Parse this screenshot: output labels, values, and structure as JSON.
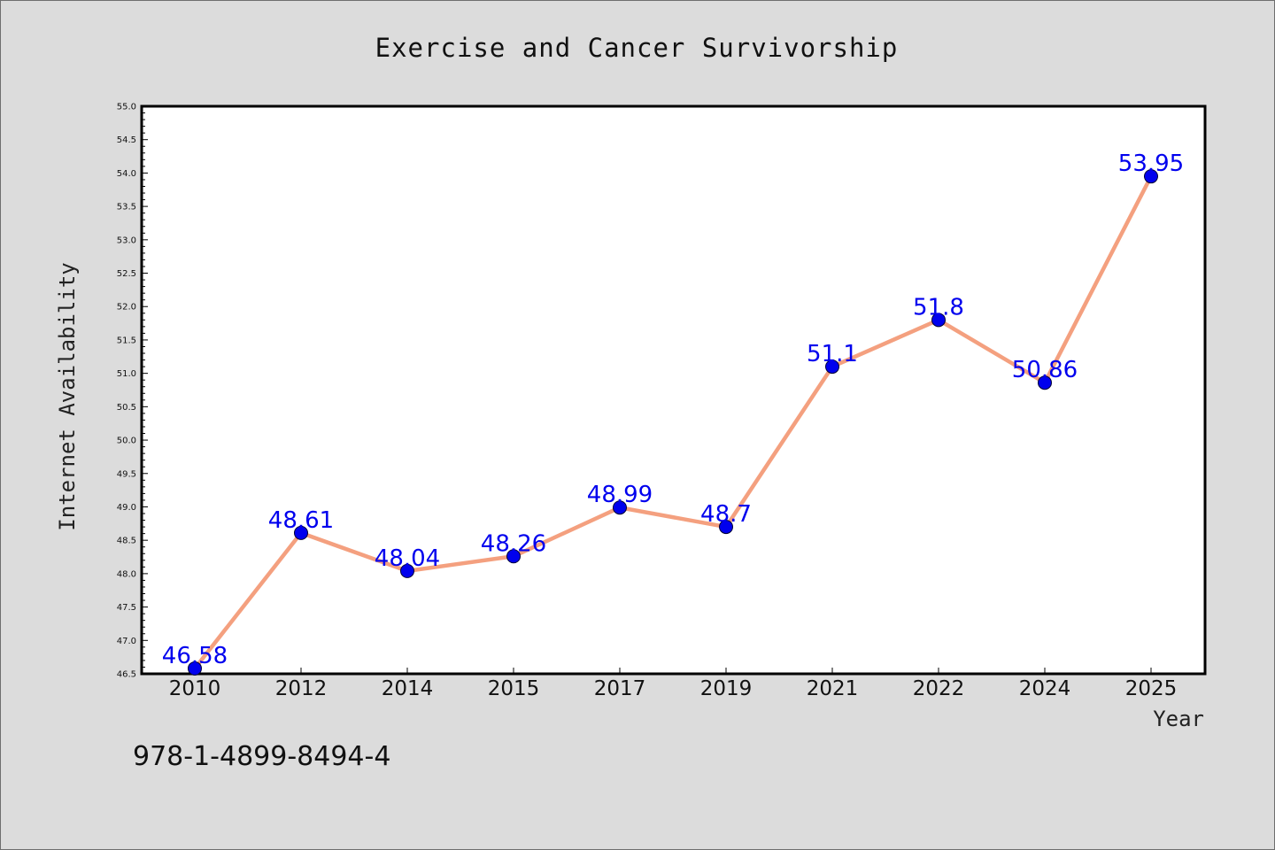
{
  "chart_data": {
    "type": "line",
    "title": "Exercise and Cancer Survivorship",
    "xlabel": "Year",
    "ylabel": "Internet Availability",
    "categories": [
      "2010",
      "2012",
      "2014",
      "2015",
      "2017",
      "2019",
      "2021",
      "2022",
      "2024",
      "2025"
    ],
    "series": [
      {
        "values": [
          46.58,
          48.61,
          48.04,
          48.26,
          48.99,
          48.7,
          51.1,
          51.8,
          50.86,
          53.95
        ],
        "line_color": "#f4a07f",
        "marker_color": "#0000ee",
        "label_color": "#0000ee"
      }
    ],
    "ylim": [
      46.5,
      55.0
    ],
    "yticks": [
      "46.5",
      "47.0",
      "47.5",
      "48.0",
      "48.5",
      "49.0",
      "49.5",
      "50.0",
      "50.5",
      "51.0",
      "51.5",
      "52.0",
      "52.5",
      "53.0",
      "53.5",
      "54.0",
      "54.5",
      "55.0"
    ],
    "grid": false,
    "legend": "none",
    "data_labels": true
  },
  "footer": {
    "text": "978-1-4899-8494-4"
  },
  "colors": {
    "background": "#dcdcdc",
    "plot_background": "#ffffff",
    "axis": "#000000"
  }
}
